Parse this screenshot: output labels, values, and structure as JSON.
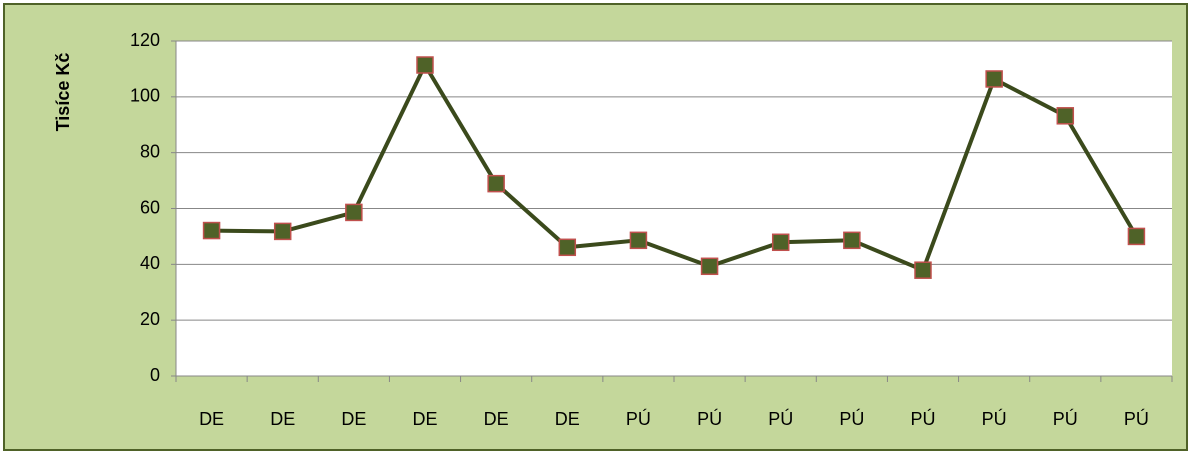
{
  "chart_data": {
    "type": "line",
    "y_label": "Tisíce Kč",
    "categories": [
      "DE",
      "DE",
      "DE",
      "DE",
      "DE",
      "DE",
      "PÚ",
      "PÚ",
      "PÚ",
      "PÚ",
      "PÚ",
      "PÚ",
      "PÚ",
      "PÚ"
    ],
    "values": [
      52.1,
      51.8,
      58.6,
      111.4,
      68.9,
      46.1,
      48.6,
      39.3,
      47.9,
      48.6,
      37.9,
      106.4,
      93.2,
      50
    ],
    "color": "#3b4a1c",
    "marker_color": "#4f6228",
    "marker_edge_color": "#c0504d",
    "ylim": [
      0,
      120
    ],
    "yticks": [
      0,
      20,
      40,
      60,
      80,
      100,
      120
    ],
    "grid": true
  }
}
